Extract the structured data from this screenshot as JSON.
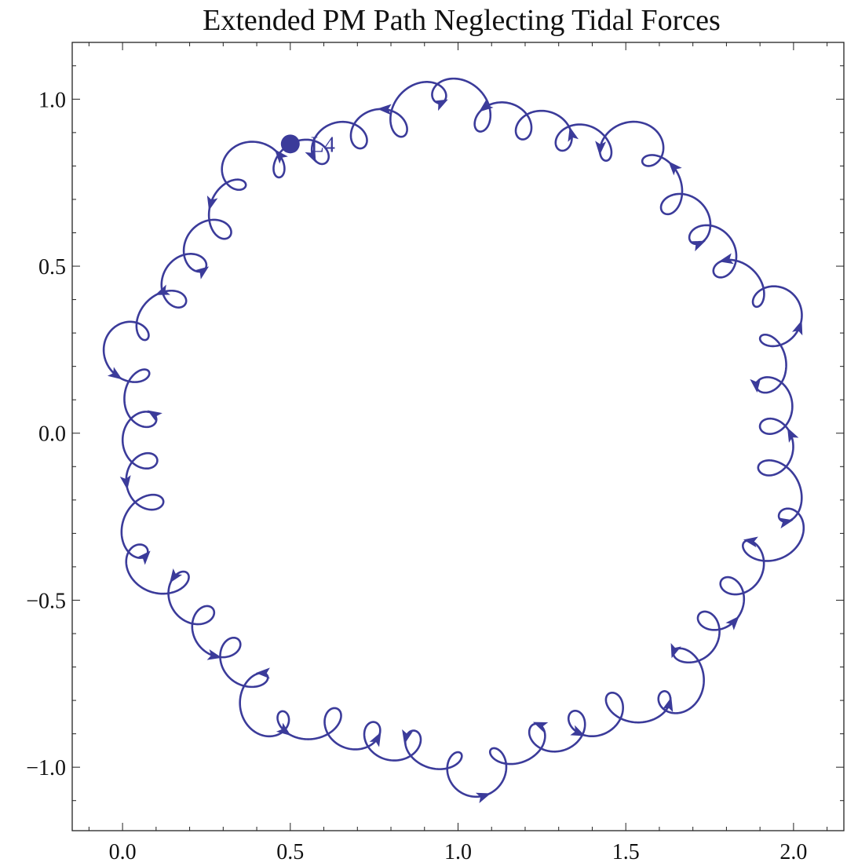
{
  "chart_data": {
    "type": "line",
    "title": "Extended PM Path Neglecting Tidal Forces",
    "xlabel": "",
    "ylabel": "",
    "xlim": [
      -0.15,
      2.15
    ],
    "ylim": [
      -1.19,
      1.17
    ],
    "xticks": [
      "0.0",
      "0.5",
      "1.0",
      "1.5",
      "2.0"
    ],
    "xtick_values": [
      0.0,
      0.5,
      1.0,
      1.5,
      2.0
    ],
    "yticks": [
      "1.0",
      "0.5",
      "0.0",
      "−0.5",
      "−1.0"
    ],
    "ytick_values": [
      1.0,
      0.5,
      0.0,
      -0.5,
      -1.0
    ],
    "grid": false,
    "legend": "none",
    "line_color": "#3b3b9a",
    "series": [
      {
        "center": [
          1.0,
          0.0
        ],
        "base_radius": 0.95,
        "loop_amplitude": 0.05,
        "loop_count": 48,
        "loop_phase": 0.35,
        "excursion_amplitude": 0.09,
        "excursion_count": 10,
        "start_angle_deg": 120,
        "direction": "counterclockwise",
        "arrow_count": 34
      }
    ],
    "annotations": [
      {
        "text": "L4",
        "x": 0.5,
        "y": 0.866,
        "marker": "filled-circle"
      }
    ]
  }
}
